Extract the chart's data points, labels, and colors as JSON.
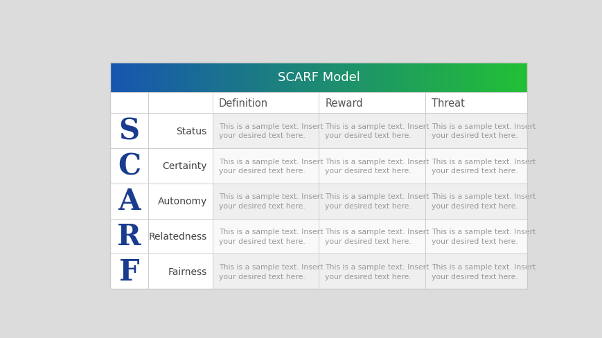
{
  "title": "SCARF Model",
  "title_color": "#ffffff",
  "title_fontsize": 13,
  "header_cols": [
    "Definition",
    "Reward",
    "Threat"
  ],
  "header_fontsize": 10.5,
  "header_text_color": "#555555",
  "rows": [
    {
      "letter": "S",
      "label": "Status"
    },
    {
      "letter": "C",
      "label": "Certainty"
    },
    {
      "letter": "A",
      "label": "Autonomy"
    },
    {
      "letter": "R",
      "label": "Relatedness"
    },
    {
      "letter": "F",
      "label": "Fairness"
    }
  ],
  "letter_color": "#1a3c8f",
  "label_color": "#444444",
  "sample_text": "This is a sample text. Insert\nyour desired text here.",
  "sample_text_color": "#999999",
  "sample_text_fontsize": 7.8,
  "letter_fontsize": 30,
  "label_fontsize": 10,
  "bg_color": "#dcdcdc",
  "row_alt_color": "#efefef",
  "row_white_color": "#f9f9f9",
  "border_color": "#cccccc",
  "gradient_left": "#1755b0",
  "gradient_right": "#22c035",
  "fig_width": 8.7,
  "fig_height": 4.89
}
